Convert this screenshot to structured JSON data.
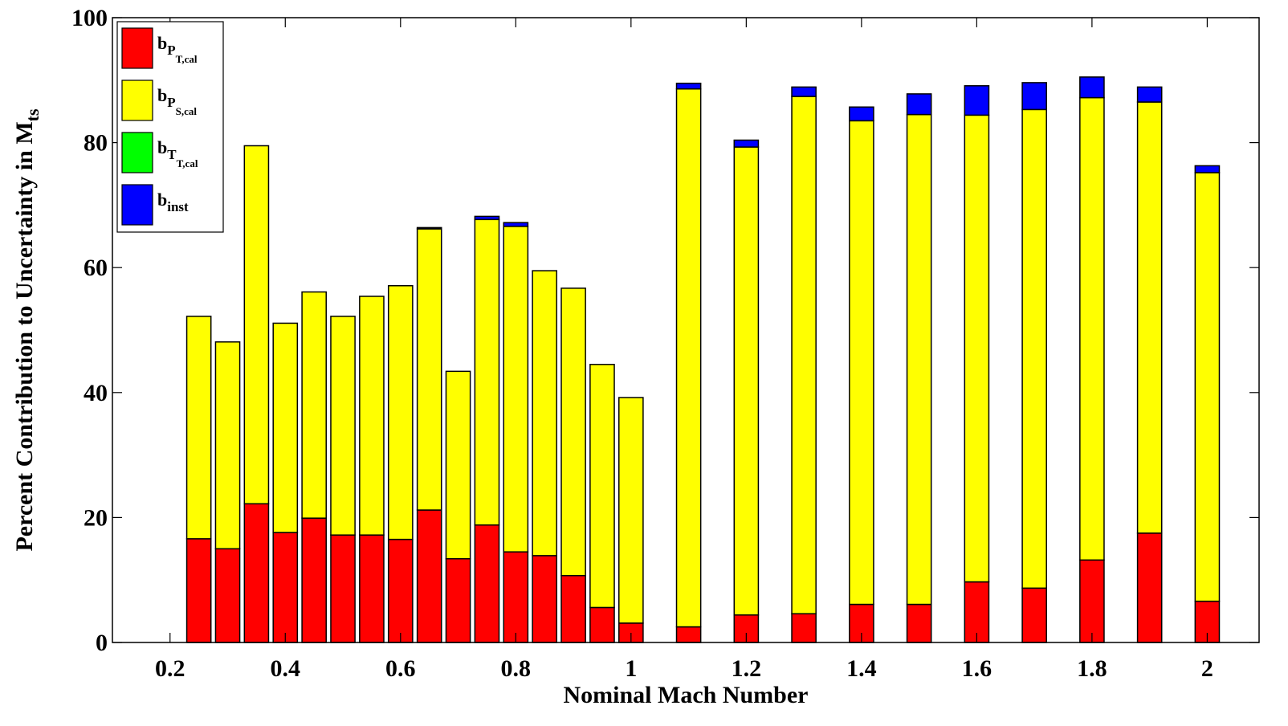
{
  "chart_data": {
    "type": "bar",
    "stacked": true,
    "title": "",
    "xlabel": "Nominal Mach Number",
    "ylabel": {
      "text": "Percent Contribution to Uncertainty in M",
      "subscript": "ts"
    },
    "xlim": [
      0.1,
      2.09
    ],
    "ylim": [
      0,
      100
    ],
    "xticks": [
      0.2,
      0.4,
      0.6,
      0.8,
      1.0,
      1.2,
      1.4,
      1.6,
      1.8,
      2.0
    ],
    "xtick_labels": [
      "0.2",
      "0.4",
      "0.6",
      "0.8",
      "1",
      "1.2",
      "1.4",
      "1.6",
      "1.8",
      "2"
    ],
    "yticks": [
      0,
      20,
      40,
      60,
      80,
      100
    ],
    "ytick_labels": [
      "0",
      "20",
      "40",
      "60",
      "80",
      "100"
    ],
    "bar_width": 0.042,
    "grid": false,
    "legend_position": "top-left",
    "x": [
      0.25,
      0.3,
      0.35,
      0.4,
      0.45,
      0.5,
      0.55,
      0.6,
      0.65,
      0.7,
      0.75,
      0.8,
      0.85,
      0.9,
      0.95,
      1.0,
      1.1,
      1.2,
      1.3,
      1.4,
      1.5,
      1.6,
      1.7,
      1.8,
      1.9,
      2.0
    ],
    "series": [
      {
        "name": "b_P_T,cal",
        "legend_main": "b",
        "legend_sub1": "P",
        "legend_sub2": "T,cal",
        "color": "#ff0000",
        "values": [
          16.6,
          15.0,
          22.2,
          17.6,
          19.9,
          17.2,
          17.2,
          16.5,
          21.2,
          13.4,
          18.8,
          14.5,
          13.9,
          10.7,
          5.6,
          3.1,
          2.5,
          4.4,
          4.6,
          6.1,
          6.1,
          9.7,
          8.7,
          13.2,
          17.5,
          6.6
        ]
      },
      {
        "name": "b_P_S,cal",
        "legend_main": "b",
        "legend_sub1": "P",
        "legend_sub2": "S,cal",
        "color": "#ffff00",
        "values": [
          35.6,
          33.1,
          57.3,
          33.5,
          36.2,
          35.0,
          38.2,
          40.6,
          45.0,
          30.0,
          48.9,
          52.1,
          45.6,
          46.0,
          38.9,
          36.1,
          86.1,
          74.9,
          82.8,
          77.4,
          78.4,
          74.7,
          76.6,
          74.0,
          69.0,
          68.6
        ]
      },
      {
        "name": "b_T_T,cal",
        "legend_main": "b",
        "legend_sub1": "T",
        "legend_sub2": "T,cal",
        "color": "#00ff00",
        "values": [
          0,
          0,
          0,
          0,
          0,
          0,
          0,
          0,
          0,
          0,
          0,
          0,
          0,
          0,
          0,
          0,
          0,
          0,
          0,
          0,
          0,
          0,
          0,
          0,
          0,
          0
        ]
      },
      {
        "name": "b_inst",
        "legend_main": "b",
        "legend_sub1": "inst",
        "legend_sub2": "",
        "color": "#0000ff",
        "values": [
          0,
          0,
          0,
          0,
          0,
          0,
          0,
          0,
          0.2,
          0,
          0.5,
          0.6,
          0,
          0,
          0,
          0,
          0.9,
          1.1,
          1.5,
          2.2,
          3.3,
          4.7,
          4.3,
          3.3,
          2.4,
          1.1
        ]
      }
    ]
  }
}
